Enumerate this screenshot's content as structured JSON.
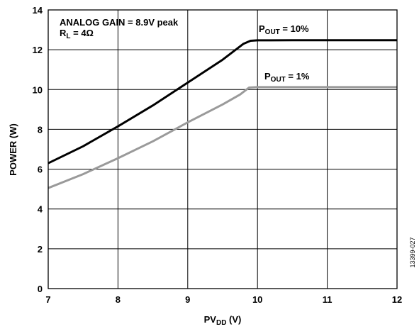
{
  "chart_data": {
    "type": "line",
    "xlabel": {
      "main": "PV",
      "sub": "DD",
      "suffix": " (V)"
    },
    "ylabel": "POWER (W)",
    "xlim": [
      7,
      12
    ],
    "ylim": [
      0,
      14
    ],
    "xticks": [
      7,
      8,
      9,
      10,
      11,
      12
    ],
    "yticks": [
      0,
      2,
      4,
      6,
      8,
      10,
      12,
      14
    ],
    "grid": true,
    "annotations": {
      "line1": "ANALOG GAIN = 8.9V peak",
      "line2_main": "R",
      "line2_sub": "L",
      "line2_suffix": " = 4Ω"
    },
    "figure_id": "13399-027",
    "series": [
      {
        "name_main": "P",
        "name_sub": "OUT",
        "name_suffix": " = 10%",
        "color": "#000000",
        "x": [
          7,
          7.5,
          8,
          8.5,
          9,
          9.5,
          9.8,
          9.9,
          10,
          10.5,
          11,
          11.5,
          12
        ],
        "y": [
          6.3,
          7.15,
          8.15,
          9.2,
          10.35,
          11.5,
          12.3,
          12.45,
          12.47,
          12.48,
          12.48,
          12.48,
          12.48
        ]
      },
      {
        "name_main": "P",
        "name_sub": "OUT",
        "name_suffix": " = 1%",
        "color": "#9a9a9a",
        "x": [
          7,
          7.5,
          8,
          8.5,
          9,
          9.5,
          9.75,
          9.88,
          10,
          10.5,
          11,
          11.5,
          12
        ],
        "y": [
          5.05,
          5.75,
          6.55,
          7.4,
          8.35,
          9.25,
          9.75,
          10.1,
          10.12,
          10.12,
          10.12,
          10.12,
          10.12
        ]
      }
    ]
  }
}
